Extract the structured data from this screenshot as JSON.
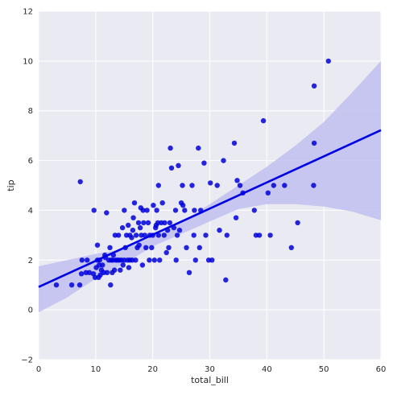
{
  "chart_data": {
    "type": "scatter",
    "title": "",
    "xlabel": "total_bill",
    "ylabel": "tip",
    "xlim": [
      0,
      60
    ],
    "ylim": [
      -2,
      12
    ],
    "xticks": [
      0,
      10,
      20,
      30,
      40,
      50,
      60
    ],
    "yticks": [
      -2,
      0,
      2,
      4,
      6,
      8,
      10,
      12
    ],
    "grid": true,
    "colors": {
      "background": "#EAEAF2",
      "grid": "#FFFFFF",
      "points": "#0000DD",
      "line": "#0000E6",
      "band": "#BFBFF0"
    },
    "regression": {
      "intercept": 0.92,
      "slope": 0.105,
      "ci_upper": [
        [
          0,
          1.75
        ],
        [
          10,
          2.25
        ],
        [
          15,
          2.45
        ],
        [
          20,
          2.95
        ],
        [
          25,
          3.5
        ],
        [
          30,
          4.25
        ],
        [
          35,
          5.0
        ],
        [
          40,
          5.75
        ],
        [
          45,
          6.6
        ],
        [
          50,
          7.55
        ],
        [
          55,
          8.75
        ],
        [
          60,
          10.0
        ]
      ],
      "ci_lower": [
        [
          0,
          -0.1
        ],
        [
          5,
          0.5
        ],
        [
          10,
          1.25
        ],
        [
          15,
          1.85
        ],
        [
          20,
          2.55
        ],
        [
          25,
          3.05
        ],
        [
          30,
          3.55
        ],
        [
          35,
          4.05
        ],
        [
          40,
          4.25
        ],
        [
          45,
          4.25
        ],
        [
          50,
          4.15
        ],
        [
          55,
          3.95
        ],
        [
          60,
          3.6
        ]
      ]
    },
    "points": [
      [
        3.1,
        1.0
      ],
      [
        5.8,
        1.0
      ],
      [
        7.2,
        1.0
      ],
      [
        7.3,
        5.15
      ],
      [
        7.5,
        1.45
      ],
      [
        7.6,
        2.0
      ],
      [
        8.3,
        1.5
      ],
      [
        8.5,
        2.0
      ],
      [
        8.9,
        1.5
      ],
      [
        9.6,
        1.45
      ],
      [
        9.7,
        4.0
      ],
      [
        9.9,
        1.3
      ],
      [
        10.1,
        1.7
      ],
      [
        10.3,
        2.0
      ],
      [
        10.3,
        2.6
      ],
      [
        10.5,
        1.3
      ],
      [
        10.6,
        1.8
      ],
      [
        10.7,
        2.0
      ],
      [
        10.8,
        1.4
      ],
      [
        11.0,
        1.6
      ],
      [
        11.2,
        1.8
      ],
      [
        11.4,
        1.5
      ],
      [
        11.6,
        2.2
      ],
      [
        11.7,
        2.1
      ],
      [
        11.9,
        3.9
      ],
      [
        12.0,
        1.5
      ],
      [
        12.3,
        2.0
      ],
      [
        12.5,
        2.5
      ],
      [
        12.6,
        1.0
      ],
      [
        12.7,
        2.0
      ],
      [
        12.9,
        1.5
      ],
      [
        13.0,
        2.0
      ],
      [
        13.1,
        2.2
      ],
      [
        13.3,
        1.6
      ],
      [
        13.4,
        3.0
      ],
      [
        13.5,
        2.0
      ],
      [
        13.8,
        2.0
      ],
      [
        14.0,
        3.0
      ],
      [
        14.1,
        2.0
      ],
      [
        14.3,
        1.6
      ],
      [
        14.5,
        2.0
      ],
      [
        14.7,
        3.3
      ],
      [
        14.8,
        1.8
      ],
      [
        15.0,
        2.0
      ],
      [
        15.0,
        4.0
      ],
      [
        15.2,
        2.5
      ],
      [
        15.4,
        3.0
      ],
      [
        15.6,
        2.0
      ],
      [
        15.7,
        3.4
      ],
      [
        15.8,
        1.7
      ],
      [
        16.0,
        2.0
      ],
      [
        16.0,
        3.0
      ],
      [
        16.3,
        2.9
      ],
      [
        16.4,
        2.0
      ],
      [
        16.5,
        3.2
      ],
      [
        16.6,
        3.7
      ],
      [
        16.8,
        4.3
      ],
      [
        17.0,
        2.0
      ],
      [
        17.1,
        3.0
      ],
      [
        17.3,
        2.5
      ],
      [
        17.5,
        3.5
      ],
      [
        17.6,
        2.6
      ],
      [
        17.8,
        3.3
      ],
      [
        17.9,
        4.1
      ],
      [
        18.0,
        3.0
      ],
      [
        18.2,
        1.8
      ],
      [
        18.3,
        4.0
      ],
      [
        18.4,
        3.5
      ],
      [
        18.6,
        3.0
      ],
      [
        18.8,
        2.5
      ],
      [
        19.0,
        4.0
      ],
      [
        19.2,
        3.5
      ],
      [
        19.4,
        2.0
      ],
      [
        19.5,
        3.0
      ],
      [
        19.8,
        2.5
      ],
      [
        20.0,
        3.0
      ],
      [
        20.1,
        4.2
      ],
      [
        20.3,
        2.0
      ],
      [
        20.5,
        3.3
      ],
      [
        20.6,
        3.4
      ],
      [
        20.7,
        4.0
      ],
      [
        20.9,
        3.5
      ],
      [
        21.0,
        3.0
      ],
      [
        21.0,
        5.0
      ],
      [
        21.2,
        2.0
      ],
      [
        21.5,
        3.5
      ],
      [
        21.7,
        4.3
      ],
      [
        22.0,
        3.0
      ],
      [
        22.1,
        3.5
      ],
      [
        22.4,
        2.3
      ],
      [
        22.6,
        3.2
      ],
      [
        22.8,
        2.5
      ],
      [
        23.0,
        3.5
      ],
      [
        23.1,
        6.5
      ],
      [
        23.3,
        5.7
      ],
      [
        23.7,
        3.3
      ],
      [
        24.0,
        4.0
      ],
      [
        24.1,
        2.0
      ],
      [
        24.3,
        3.0
      ],
      [
        24.5,
        5.8
      ],
      [
        24.7,
        3.2
      ],
      [
        25.0,
        4.3
      ],
      [
        25.2,
        5.0
      ],
      [
        25.3,
        4.2
      ],
      [
        25.6,
        4.0
      ],
      [
        25.9,
        2.5
      ],
      [
        26.4,
        1.5
      ],
      [
        26.9,
        5.0
      ],
      [
        27.2,
        3.0
      ],
      [
        27.3,
        4.0
      ],
      [
        27.5,
        2.0
      ],
      [
        28.0,
        6.5
      ],
      [
        28.2,
        2.5
      ],
      [
        28.4,
        4.0
      ],
      [
        29.0,
        5.9
      ],
      [
        29.3,
        3.0
      ],
      [
        29.8,
        2.0
      ],
      [
        30.1,
        5.1
      ],
      [
        30.4,
        2.0
      ],
      [
        31.3,
        5.0
      ],
      [
        31.7,
        3.2
      ],
      [
        32.4,
        6.0
      ],
      [
        32.8,
        1.2
      ],
      [
        33.0,
        3.0
      ],
      [
        34.3,
        6.7
      ],
      [
        34.6,
        3.7
      ],
      [
        34.8,
        5.2
      ],
      [
        35.3,
        5.0
      ],
      [
        35.8,
        4.7
      ],
      [
        37.8,
        4.0
      ],
      [
        38.1,
        3.0
      ],
      [
        38.7,
        3.0
      ],
      [
        39.4,
        7.6
      ],
      [
        40.2,
        4.7
      ],
      [
        40.6,
        3.0
      ],
      [
        41.2,
        5.0
      ],
      [
        43.1,
        5.0
      ],
      [
        44.3,
        2.5
      ],
      [
        45.4,
        3.5
      ],
      [
        48.2,
        5.0
      ],
      [
        48.3,
        6.7
      ],
      [
        48.3,
        9.0
      ],
      [
        50.8,
        10.0
      ]
    ]
  }
}
